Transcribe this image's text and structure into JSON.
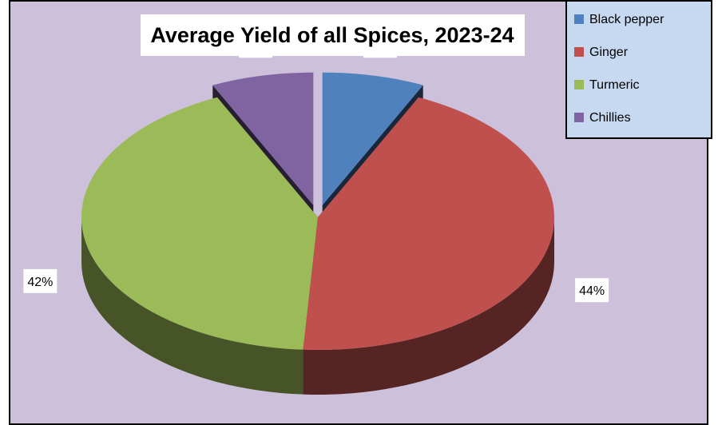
{
  "chart_data": {
    "type": "pie",
    "style": "3d-exploded",
    "title": "Average Yield of all Spices, 2023-24",
    "categories": [
      "Black pepper",
      "Ginger",
      "Turmeric",
      "Chillies"
    ],
    "values": [
      7,
      44,
      42,
      7
    ],
    "data_labels": [
      "7%",
      "44%",
      "42%",
      "7%"
    ],
    "colors": [
      "#4f81bd",
      "#c0504d",
      "#9bbb59",
      "#8064a2"
    ],
    "legend_position": "top-right",
    "background_color": "#ccc0da",
    "legend_background_color": "#c6d9f1"
  }
}
